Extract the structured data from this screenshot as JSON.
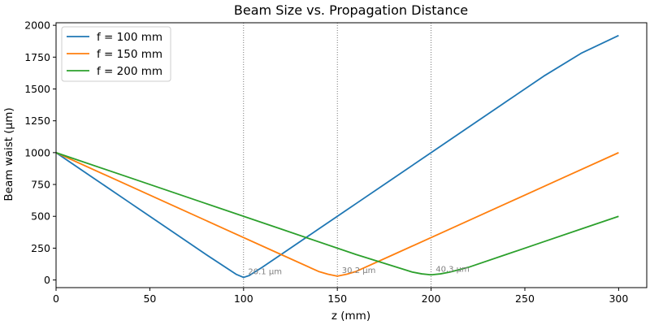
{
  "chart_data": {
    "type": "line",
    "title": "Beam Size vs. Propagation Distance",
    "xlabel": "z (mm)",
    "ylabel": "Beam waist (µm)",
    "xlim": [
      0,
      315
    ],
    "ylim": [
      -60,
      2020
    ],
    "x_ticks": [
      0,
      50,
      100,
      150,
      200,
      250,
      300
    ],
    "y_ticks": [
      0,
      250,
      500,
      750,
      1000,
      1250,
      1500,
      1750,
      2000
    ],
    "grid": false,
    "legend_position": "upper-left",
    "series": [
      {
        "name": "f = 100 mm",
        "color": "#1f77b4",
        "x": [
          0,
          20,
          40,
          60,
          80,
          96,
          100,
          103,
          110,
          120,
          140,
          160,
          180,
          200,
          220,
          240,
          260,
          280,
          300
        ],
        "y": [
          1000,
          800,
          600,
          400,
          200,
          45,
          20.1,
          35,
          100,
          200,
          400,
          600,
          800,
          1000,
          1200,
          1400,
          1600,
          1780,
          1920
        ]
      },
      {
        "name": "f = 150 mm",
        "color": "#ff7f0e",
        "x": [
          0,
          30,
          60,
          90,
          120,
          140,
          145,
          150,
          155,
          160,
          180,
          210,
          240,
          270,
          300
        ],
        "y": [
          1000,
          800,
          600,
          400,
          200,
          67,
          45,
          30.2,
          45,
          67,
          200,
          400,
          600,
          800,
          1000
        ]
      },
      {
        "name": "f = 200 mm",
        "color": "#2ca02c",
        "x": [
          0,
          40,
          80,
          120,
          160,
          185,
          190,
          195,
          200,
          205,
          210,
          220,
          240,
          260,
          280,
          300
        ],
        "y": [
          1000,
          800,
          600,
          400,
          200,
          85,
          62,
          48,
          40.3,
          48,
          62,
          100,
          200,
          300,
          400,
          500
        ]
      }
    ],
    "vlines": [
      100,
      150,
      200
    ],
    "annotations": [
      {
        "x": 102,
        "y": 20.1,
        "text": "20.1 µm"
      },
      {
        "x": 152,
        "y": 30.2,
        "text": "30.2 µm"
      },
      {
        "x": 202,
        "y": 40.3,
        "text": "40.3 µm"
      }
    ]
  }
}
